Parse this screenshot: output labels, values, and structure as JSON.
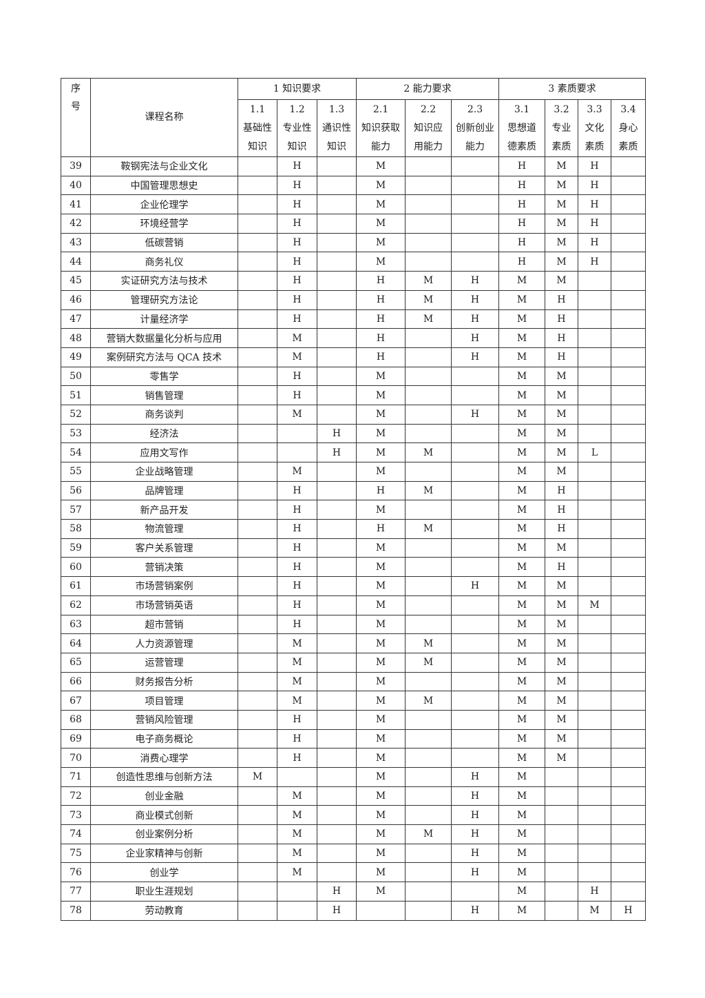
{
  "header": {
    "seq": "序号",
    "course_name": "课程名称",
    "groups": [
      "1 知识要求",
      "2 能力要求",
      "3 素质要求"
    ],
    "subs": [
      {
        "code": "1.1",
        "l1": "基础性",
        "l2": "知识"
      },
      {
        "code": "1.2",
        "l1": "专业性",
        "l2": "知识"
      },
      {
        "code": "1.3",
        "l1": "通识性",
        "l2": "知识"
      },
      {
        "code": "2.1",
        "l1": "知识获取",
        "l2": "能力"
      },
      {
        "code": "2.2",
        "l1": "知识应",
        "l2": "用能力"
      },
      {
        "code": "2.3",
        "l1": "创新创业",
        "l2": "能力"
      },
      {
        "code": "3.1",
        "l1": "思想道",
        "l2": "德素质"
      },
      {
        "code": "3.2",
        "l1": "专业",
        "l2": "素质"
      },
      {
        "code": "3.3",
        "l1": "文化",
        "l2": "素质"
      },
      {
        "code": "3.4",
        "l1": "身心",
        "l2": "素质"
      }
    ]
  },
  "rows": [
    {
      "no": "39",
      "name": "鞍钢宪法与企业文化",
      "v": [
        "",
        "H",
        "",
        "M",
        "",
        "",
        "H",
        "M",
        "H",
        ""
      ]
    },
    {
      "no": "40",
      "name": "中国管理思想史",
      "v": [
        "",
        "H",
        "",
        "M",
        "",
        "",
        "H",
        "M",
        "H",
        ""
      ]
    },
    {
      "no": "41",
      "name": "企业伦理学",
      "v": [
        "",
        "H",
        "",
        "M",
        "",
        "",
        "H",
        "M",
        "H",
        ""
      ]
    },
    {
      "no": "42",
      "name": "环境经营学",
      "v": [
        "",
        "H",
        "",
        "M",
        "",
        "",
        "H",
        "M",
        "H",
        ""
      ]
    },
    {
      "no": "43",
      "name": "低碳营销",
      "v": [
        "",
        "H",
        "",
        "M",
        "",
        "",
        "H",
        "M",
        "H",
        ""
      ]
    },
    {
      "no": "44",
      "name": "商务礼仪",
      "v": [
        "",
        "H",
        "",
        "M",
        "",
        "",
        "H",
        "M",
        "H",
        ""
      ]
    },
    {
      "no": "45",
      "name": "实证研究方法与技术",
      "v": [
        "",
        "H",
        "",
        "H",
        "M",
        "H",
        "M",
        "M",
        "",
        ""
      ]
    },
    {
      "no": "46",
      "name": "管理研究方法论",
      "v": [
        "",
        "H",
        "",
        "H",
        "M",
        "H",
        "M",
        "H",
        "",
        ""
      ]
    },
    {
      "no": "47",
      "name": "计量经济学",
      "v": [
        "",
        "H",
        "",
        "H",
        "M",
        "H",
        "M",
        "H",
        "",
        ""
      ]
    },
    {
      "no": "48",
      "name": "营销大数据量化分析与应用",
      "v": [
        "",
        "M",
        "",
        "H",
        "",
        "H",
        "M",
        "H",
        "",
        ""
      ]
    },
    {
      "no": "49",
      "name": "案例研究方法与 QCA 技术",
      "v": [
        "",
        "M",
        "",
        "H",
        "",
        "H",
        "M",
        "H",
        "",
        ""
      ]
    },
    {
      "no": "50",
      "name": "零售学",
      "v": [
        "",
        "H",
        "",
        "M",
        "",
        "",
        "M",
        "M",
        "",
        ""
      ]
    },
    {
      "no": "51",
      "name": "销售管理",
      "v": [
        "",
        "H",
        "",
        "M",
        "",
        "",
        "M",
        "M",
        "",
        ""
      ]
    },
    {
      "no": "52",
      "name": "商务谈判",
      "v": [
        "",
        "M",
        "",
        "M",
        "",
        "H",
        "M",
        "M",
        "",
        ""
      ]
    },
    {
      "no": "53",
      "name": "经济法",
      "v": [
        "",
        "",
        "H",
        "M",
        "",
        "",
        "M",
        "M",
        "",
        ""
      ]
    },
    {
      "no": "54",
      "name": "应用文写作",
      "v": [
        "",
        "",
        "H",
        "M",
        "M",
        "",
        "M",
        "M",
        "L",
        ""
      ]
    },
    {
      "no": "55",
      "name": "企业战略管理",
      "v": [
        "",
        "M",
        "",
        "M",
        "",
        "",
        "M",
        "M",
        "",
        ""
      ]
    },
    {
      "no": "56",
      "name": "品牌管理",
      "v": [
        "",
        "H",
        "",
        "H",
        "M",
        "",
        "M",
        "H",
        "",
        ""
      ]
    },
    {
      "no": "57",
      "name": "新产品开发",
      "v": [
        "",
        "H",
        "",
        "M",
        "",
        "",
        "M",
        "H",
        "",
        ""
      ]
    },
    {
      "no": "58",
      "name": "物流管理",
      "v": [
        "",
        "H",
        "",
        "H",
        "M",
        "",
        "M",
        "H",
        "",
        ""
      ]
    },
    {
      "no": "59",
      "name": "客户关系管理",
      "v": [
        "",
        "H",
        "",
        "M",
        "",
        "",
        "M",
        "M",
        "",
        ""
      ]
    },
    {
      "no": "60",
      "name": "营销决策",
      "v": [
        "",
        "H",
        "",
        "M",
        "",
        "",
        "M",
        "H",
        "",
        ""
      ]
    },
    {
      "no": "61",
      "name": "市场营销案例",
      "v": [
        "",
        "H",
        "",
        "M",
        "",
        "H",
        "M",
        "M",
        "",
        ""
      ]
    },
    {
      "no": "62",
      "name": "市场营销英语",
      "v": [
        "",
        "H",
        "",
        "M",
        "",
        "",
        "M",
        "M",
        "M",
        ""
      ]
    },
    {
      "no": "63",
      "name": "超市营销",
      "v": [
        "",
        "H",
        "",
        "M",
        "",
        "",
        "M",
        "M",
        "",
        ""
      ]
    },
    {
      "no": "64",
      "name": "人力资源管理",
      "v": [
        "",
        "M",
        "",
        "M",
        "M",
        "",
        "M",
        "M",
        "",
        ""
      ]
    },
    {
      "no": "65",
      "name": "运营管理",
      "v": [
        "",
        "M",
        "",
        "M",
        "M",
        "",
        "M",
        "M",
        "",
        ""
      ]
    },
    {
      "no": "66",
      "name": "财务报告分析",
      "v": [
        "",
        "M",
        "",
        "M",
        "",
        "",
        "M",
        "M",
        "",
        ""
      ]
    },
    {
      "no": "67",
      "name": "项目管理",
      "v": [
        "",
        "M",
        "",
        "M",
        "M",
        "",
        "M",
        "M",
        "",
        ""
      ]
    },
    {
      "no": "68",
      "name": "营销风险管理",
      "v": [
        "",
        "H",
        "",
        "M",
        "",
        "",
        "M",
        "M",
        "",
        ""
      ]
    },
    {
      "no": "69",
      "name": "电子商务概论",
      "v": [
        "",
        "H",
        "",
        "M",
        "",
        "",
        "M",
        "M",
        "",
        ""
      ]
    },
    {
      "no": "70",
      "name": "消费心理学",
      "v": [
        "",
        "H",
        "",
        "M",
        "",
        "",
        "M",
        "M",
        "",
        ""
      ]
    },
    {
      "no": "71",
      "name": "创造性思维与创新方法",
      "v": [
        "M",
        "",
        "",
        "M",
        "",
        "H",
        "M",
        "",
        "",
        ""
      ]
    },
    {
      "no": "72",
      "name": "创业金融",
      "v": [
        "",
        "M",
        "",
        "M",
        "",
        "H",
        "M",
        "",
        "",
        ""
      ]
    },
    {
      "no": "73",
      "name": "商业模式创新",
      "v": [
        "",
        "M",
        "",
        "M",
        "",
        "H",
        "M",
        "",
        "",
        ""
      ]
    },
    {
      "no": "74",
      "name": "创业案例分析",
      "v": [
        "",
        "M",
        "",
        "M",
        "M",
        "H",
        "M",
        "",
        "",
        ""
      ]
    },
    {
      "no": "75",
      "name": "企业家精神与创新",
      "v": [
        "",
        "M",
        "",
        "M",
        "",
        "H",
        "M",
        "",
        "",
        ""
      ]
    },
    {
      "no": "76",
      "name": "创业学",
      "v": [
        "",
        "M",
        "",
        "M",
        "",
        "H",
        "M",
        "",
        "",
        ""
      ]
    },
    {
      "no": "77",
      "name": "职业生涯规划",
      "v": [
        "",
        "",
        "H",
        "M",
        "",
        "",
        "M",
        "",
        "H",
        ""
      ]
    },
    {
      "no": "78",
      "name": "劳动教育",
      "v": [
        "",
        "",
        "H",
        "",
        "",
        "H",
        "M",
        "",
        "M",
        "H"
      ]
    }
  ]
}
